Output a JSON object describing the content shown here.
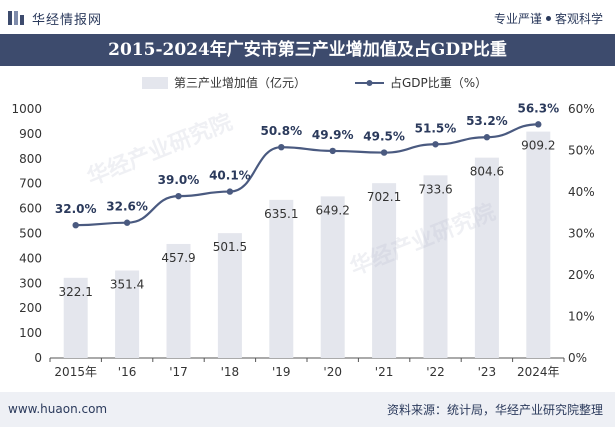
{
  "header": {
    "brand": "华经情报网",
    "slogan_left": "专业严谨",
    "slogan_right": "客观科学"
  },
  "title": "2015-2024年广安市第三产业增加值及占GDP比重",
  "footer": {
    "site": "www.huaon.com",
    "source": "资料来源：统计局，华经产业研究院整理"
  },
  "watermark": "华经产业研究院",
  "colors": {
    "bar": "#e4e6ed",
    "line": "#4a5a80",
    "title_bg": "#3d4b6d",
    "text": "#2b3a5c"
  },
  "chart_data": {
    "type": "bar",
    "categories": [
      "2015年",
      "'16",
      "'17",
      "'18",
      "'19",
      "'20",
      "'21",
      "'22",
      "'23",
      "2024年"
    ],
    "series": [
      {
        "name": "第三产业增加值（亿元）",
        "type": "bar",
        "axis": "left",
        "values": [
          322.1,
          351.4,
          457.9,
          501.5,
          635.1,
          649.2,
          702.1,
          733.6,
          804.6,
          909.2
        ],
        "labels": [
          "322.1",
          "351.4",
          "457.9",
          "501.5",
          "635.1",
          "649.2",
          "702.1",
          "733.6",
          "804.6",
          "909.2"
        ]
      },
      {
        "name": "占GDP比重（%）",
        "type": "line",
        "axis": "right",
        "values": [
          32.0,
          32.6,
          39.0,
          40.1,
          50.8,
          49.9,
          49.5,
          51.5,
          53.2,
          56.3
        ],
        "labels": [
          "32.0%",
          "32.6%",
          "39.0%",
          "40.1%",
          "50.8%",
          "49.9%",
          "49.5%",
          "51.5%",
          "53.2%",
          "56.3%"
        ]
      }
    ],
    "y_left": {
      "lim": [
        0,
        1000
      ],
      "ticks": [
        "0",
        "100",
        "200",
        "300",
        "400",
        "500",
        "600",
        "700",
        "800",
        "900",
        "1000"
      ]
    },
    "y_right": {
      "lim": [
        0,
        60
      ],
      "ticks": [
        "0%",
        "10%",
        "20%",
        "30%",
        "40%",
        "50%",
        "60%"
      ]
    },
    "legend_position": "top-center",
    "grid": false
  }
}
